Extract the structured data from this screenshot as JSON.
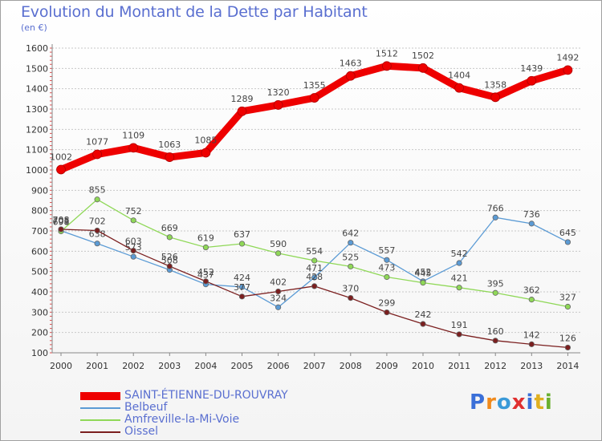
{
  "title": "Evolution du Montant de la Dette par Habitant",
  "subtitle": "(en €)",
  "logo": "Proxiti",
  "logo_letters": [
    {
      "ch": "P",
      "color": "#3a6fd8"
    },
    {
      "ch": "r",
      "color": "#f08a1c"
    },
    {
      "ch": "o",
      "color": "#3a9ad8"
    },
    {
      "ch": "x",
      "color": "#e03030"
    },
    {
      "ch": "i",
      "color": "#3a6fd8"
    },
    {
      "ch": "t",
      "color": "#e0b020"
    },
    {
      "ch": "i",
      "color": "#6ab030"
    }
  ],
  "chart_data": {
    "type": "line",
    "x": [
      "2000",
      "2001",
      "2002",
      "2003",
      "2004",
      "2005",
      "2006",
      "2007",
      "2008",
      "2009",
      "2010",
      "2011",
      "2012",
      "2013",
      "2014"
    ],
    "yticks": [
      "100",
      "200",
      "300",
      "400",
      "500",
      "600",
      "700",
      "800",
      "900",
      "1000",
      "1100",
      "1200",
      "1300",
      "1400",
      "1500",
      "1600"
    ],
    "ylim": [
      100,
      1600
    ],
    "grid": "horizontal dotted",
    "legend_position": "bottom-left",
    "series": [
      {
        "name": "SAINT-ÉTIENNE-DU-ROUVRAY",
        "color": "#ee0000",
        "values": [
          1002,
          1077,
          1109,
          1063,
          1085,
          1289,
          1320,
          1355,
          1463,
          1512,
          1502,
          1404,
          1358,
          1439,
          1492
        ],
        "labels": [
          "1002",
          "1077",
          "1109",
          "1063",
          "1085",
          "1289",
          "1320",
          "1355",
          "1463",
          "1512",
          "1502",
          "1404",
          "1358",
          "1439",
          "1492"
        ]
      },
      {
        "name": "Belbeuf",
        "color": "#5b9bd5",
        "values": [
          701,
          638,
          573,
          508,
          437,
          424,
          324,
          471,
          642,
          557,
          452,
          542,
          766,
          736,
          645
        ],
        "labels": [
          "701",
          "638",
          "573",
          "508",
          "437",
          "424",
          "324",
          "471",
          "642",
          "557",
          "452",
          "542",
          "766",
          "736",
          "645"
        ]
      },
      {
        "name": "Amfreville-la-Mi-Voie",
        "color": "#8fd857",
        "values": [
          698,
          855,
          752,
          669,
          619,
          637,
          590,
          554,
          525,
          473,
          445,
          421,
          395,
          362,
          327
        ],
        "labels": [
          "698",
          "855",
          "752",
          "669",
          "619",
          "637",
          "590",
          "554",
          "525",
          "473",
          "445",
          "421",
          "395",
          "362",
          "327"
        ]
      },
      {
        "name": "Oissel",
        "color": "#7b1f1f",
        "values": [
          708,
          702,
          603,
          526,
          452,
          377,
          402,
          428,
          370,
          299,
          242,
          191,
          160,
          142,
          126
        ],
        "labels": [
          "708",
          "702",
          "603",
          "526",
          "452",
          "377",
          "402",
          "428",
          "370",
          "299",
          "242",
          "191",
          "160",
          "142",
          "126"
        ]
      }
    ]
  }
}
